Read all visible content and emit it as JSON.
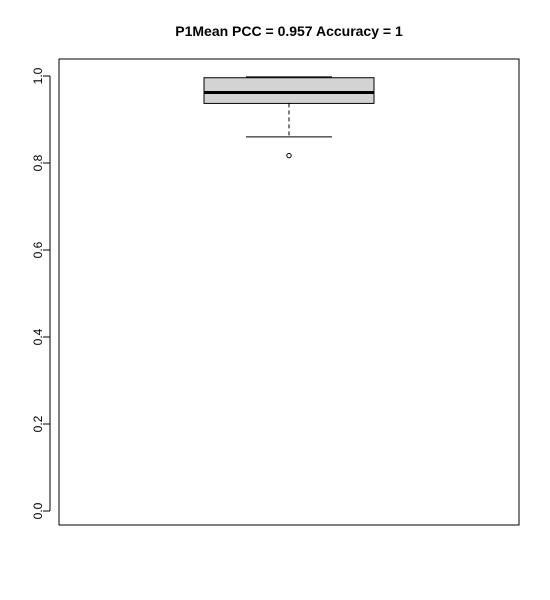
{
  "chart_data": {
    "type": "box",
    "title": "P1Mean PCC = 0.957 Accuracy = 1",
    "xlabel": "",
    "ylabel": "",
    "ylim": [
      0,
      1
    ],
    "yticks": [
      0.0,
      0.2,
      0.4,
      0.6,
      0.8,
      1.0
    ],
    "ytick_labels": [
      "0.0",
      "0.2",
      "0.4",
      "0.6",
      "0.8",
      "1.0"
    ],
    "grid": false,
    "box": {
      "whisker_low": 0.86,
      "q1": 0.937,
      "median": 0.962,
      "q3": 0.996,
      "whisker_high": 0.998,
      "outliers": [
        0.817
      ]
    },
    "colors": {
      "box_fill": "#d3d3d3",
      "stroke": "#000000"
    }
  }
}
